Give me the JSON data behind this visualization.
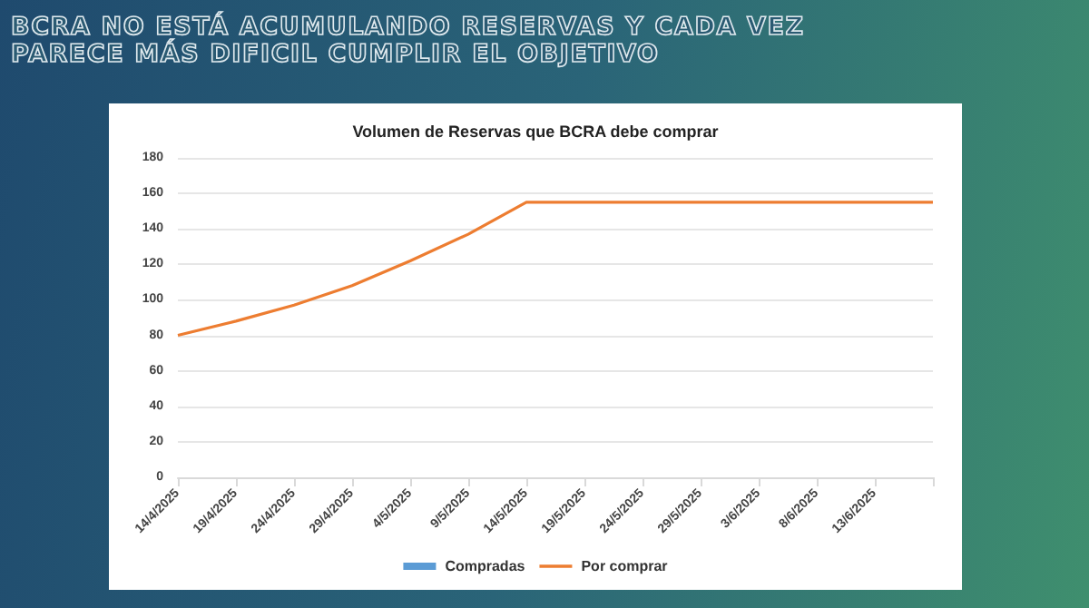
{
  "chart_data": {
    "type": "line",
    "title": "BCRA NO ESTÁ ACUMULANDO RESERVAS Y CADA VEZ PARECE MÁS DIFICIL CUMPLIR EL OBJETIVO",
    "subtitle": "Volumen de Reservas que BCRA debe comprar",
    "categories": [
      "14/4/2025",
      "19/4/2025",
      "24/4/2025",
      "29/4/2025",
      "4/5/2025",
      "9/5/2025",
      "14/5/2025",
      "19/5/2025",
      "24/5/2025",
      "29/5/2025",
      "3/6/2025",
      "8/6/2025",
      "13/6/2025",
      null
    ],
    "series": [
      {
        "name": "Compradas",
        "type": "bar",
        "color": "#5b9bd5",
        "values": [
          null,
          null,
          null,
          null,
          null,
          null,
          null,
          null,
          null,
          null,
          null,
          null,
          null,
          null
        ]
      },
      {
        "name": "Por comprar",
        "color": "#ed7d31",
        "values": [
          80,
          88,
          97,
          108,
          122,
          137,
          155,
          155,
          155,
          155,
          155,
          155,
          155,
          155
        ]
      }
    ],
    "ylim": [
      0,
      180
    ],
    "yticks": [
      0,
      20,
      40,
      60,
      80,
      100,
      120,
      140,
      160,
      180
    ],
    "grid": "y",
    "legend": "bottom",
    "marker": "none"
  }
}
